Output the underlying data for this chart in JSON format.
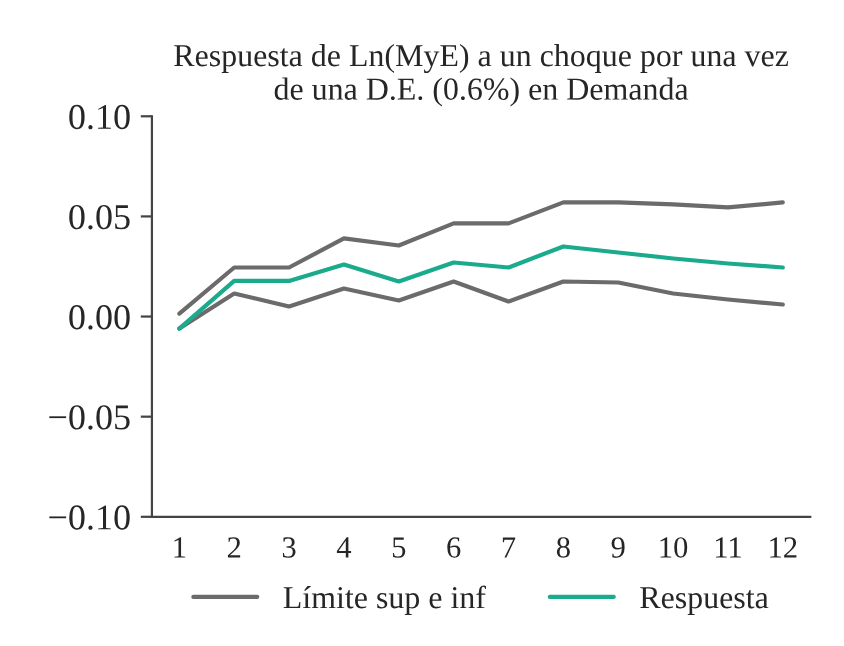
{
  "chart_data": {
    "type": "line",
    "title": "Respuesta de Ln(MyE) a un choque por una vez\nde una D.E. (0.6%) en Demanda",
    "categories": [
      "1",
      "2",
      "3",
      "4",
      "5",
      "6",
      "7",
      "8",
      "9",
      "10",
      "11",
      "12"
    ],
    "series": [
      {
        "name": "Límite sup e inf",
        "color": "#6b6b6b",
        "values": [
          0.0015,
          0.0245,
          0.0245,
          0.039,
          0.0355,
          0.0465,
          0.0465,
          0.057,
          0.057,
          0.056,
          0.0545,
          0.057
        ]
      },
      {
        "color": "#6b6b6b",
        "values": [
          -0.006,
          0.0115,
          0.005,
          0.014,
          0.008,
          0.0175,
          0.0075,
          0.0175,
          0.017,
          0.0115,
          0.0085,
          0.006
        ]
      },
      {
        "name": "Respuesta",
        "color": "#1aaa8c",
        "values": [
          -0.006,
          0.0178,
          0.0178,
          0.026,
          0.0175,
          0.027,
          0.0245,
          0.035,
          0.032,
          0.029,
          0.0265,
          0.0245
        ]
      }
    ],
    "ylim": [
      -0.1,
      0.1
    ],
    "yticks": [
      {
        "value": -0.1,
        "label": "−0.10"
      },
      {
        "value": -0.05,
        "label": "−0.05"
      },
      {
        "value": 0,
        "label": "0.00"
      },
      {
        "value": 0.05,
        "label": "0.05"
      },
      {
        "value": 0.1,
        "label": "0.10"
      }
    ],
    "grid": false,
    "legend": "bottom",
    "marker": "none",
    "line_style": "solid"
  }
}
